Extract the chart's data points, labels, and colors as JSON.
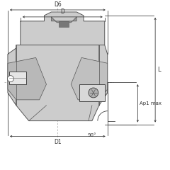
{
  "bg_color": "#ffffff",
  "part_fill": "#cccccc",
  "part_edge": "#555555",
  "dim_color": "#333333",
  "insert_fill": "#e8e8e8",
  "dark_fill": "#aaaaaa",
  "fig_width": 2.4,
  "fig_height": 2.4,
  "dpi": 100,
  "labels": {
    "D6": "D6",
    "D": "D",
    "D1": "D1",
    "L": "L",
    "Ap1max": "Ap1 max",
    "angle": "90°"
  }
}
